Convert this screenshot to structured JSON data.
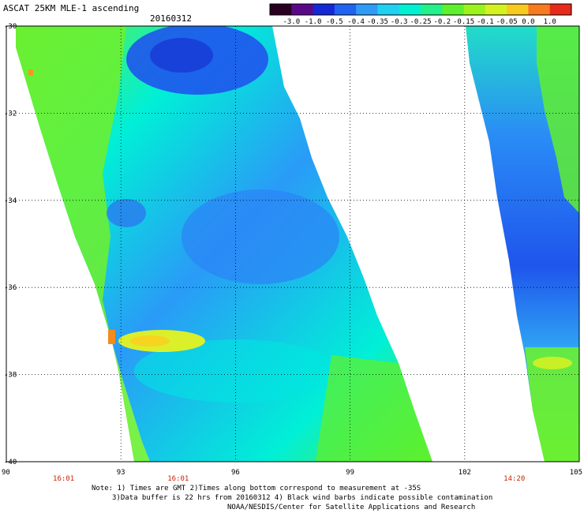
{
  "title": "ASCAT 25KM MLE-1 ascending",
  "date": "20160312",
  "colorbar": {
    "ticks": [
      "-3.0",
      "-1.0",
      "-0.5",
      "-0.4",
      "-0.35",
      "-0.3",
      "-0.25",
      "-0.2",
      "-0.15",
      "-0.1",
      "-0.05",
      "0.0",
      "1.0"
    ],
    "colors": [
      "#2a0020",
      "#5a0a86",
      "#1428d6",
      "#1f63f0",
      "#2f9bf7",
      "#1fd0f3",
      "#00f0d2",
      "#22f08a",
      "#5ef02c",
      "#9cf21d",
      "#d4f221",
      "#f8c91f",
      "#f77a1e",
      "#e82a1a"
    ]
  },
  "axes": {
    "lon": {
      "min": 90,
      "max": 105,
      "ticks": [
        "90",
        "93",
        "96",
        "99",
        "102",
        "105"
      ]
    },
    "lat": {
      "min": -40,
      "max": -30,
      "ticks": [
        "-30",
        "-32",
        "-34",
        "-36",
        "-38",
        "-40"
      ]
    }
  },
  "swath_times": [
    "16:01",
    "16:01",
    "14:20"
  ],
  "notes": [
    "Note: 1) Times are GMT 2)Times along bottom correspond to measurement at -35S",
    "3)Data buffer is 22 hrs from 20160312 4) Black wind barbs indicate possible contamination",
    "NOAA/NESDIS/Center for Satellite Applications and Research"
  ]
}
